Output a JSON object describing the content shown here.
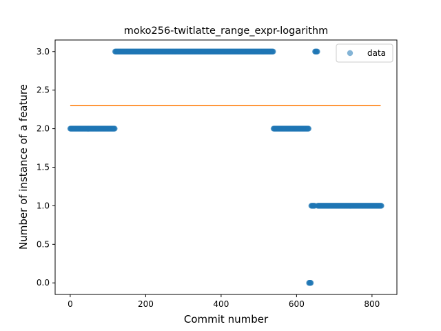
{
  "chart_data": {
    "type": "scatter",
    "title": "moko256-twitlatte_range_expr-logarithm",
    "xlabel": "Commit number",
    "ylabel": "Number of instance of a feature",
    "xlim": [
      -40,
      866
    ],
    "ylim": [
      -0.15,
      3.15
    ],
    "xticks": [
      0,
      200,
      400,
      600,
      800
    ],
    "yticks": [
      0.0,
      0.5,
      1.0,
      1.5,
      2.0,
      2.5,
      3.0
    ],
    "xtick_labels": [
      "0",
      "200",
      "400",
      "600",
      "800"
    ],
    "ytick_labels": [
      "0.0",
      "0.5",
      "1.0",
      "1.5",
      "2.0",
      "2.5",
      "3.0"
    ],
    "legend": {
      "position": "top-right",
      "entries": [
        "data"
      ]
    },
    "grid": false,
    "colors": {
      "data": "#1f77b4",
      "fit_line": "#ff7f0e"
    },
    "series": [
      {
        "name": "data",
        "kind": "scatter",
        "segments": [
          {
            "x_start": 0,
            "x_end": 118,
            "y": 2.0
          },
          {
            "x_start": 119,
            "x_end": 538,
            "y": 3.0
          },
          {
            "x_start": 539,
            "x_end": 632,
            "y": 2.0
          },
          {
            "x_start": 633,
            "x_end": 638,
            "y": 0.0
          },
          {
            "x_start": 639,
            "x_end": 648,
            "y": 1.0
          },
          {
            "x_start": 649,
            "x_end": 655,
            "y": 3.0
          },
          {
            "x_start": 656,
            "x_end": 825,
            "y": 1.0
          }
        ]
      },
      {
        "kind": "line",
        "x": [
          0,
          823
        ],
        "y": [
          2.3,
          2.3
        ]
      }
    ]
  }
}
